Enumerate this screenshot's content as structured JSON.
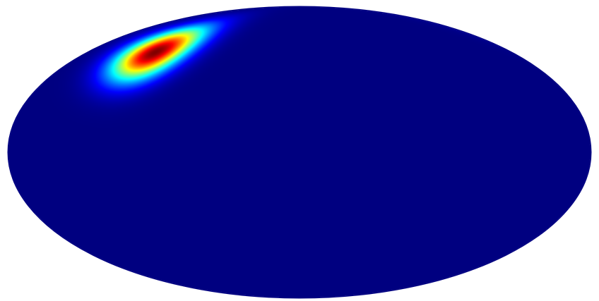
{
  "chart_data": {
    "type": "heatmap",
    "projection": "mollweide",
    "colormap": "jet",
    "colormap_stops": [
      "#000080",
      "#0000ff",
      "#00ffff",
      "#ffff00",
      "#ff0000",
      "#800000"
    ],
    "background_color": "#000080",
    "title": "",
    "xlabel": "",
    "ylabel": "",
    "colorbar": false,
    "grid": false,
    "hotspot": {
      "lon_deg": -122,
      "lat_deg": 53,
      "peak": 1.0,
      "sigma_deg": 11
    }
  }
}
